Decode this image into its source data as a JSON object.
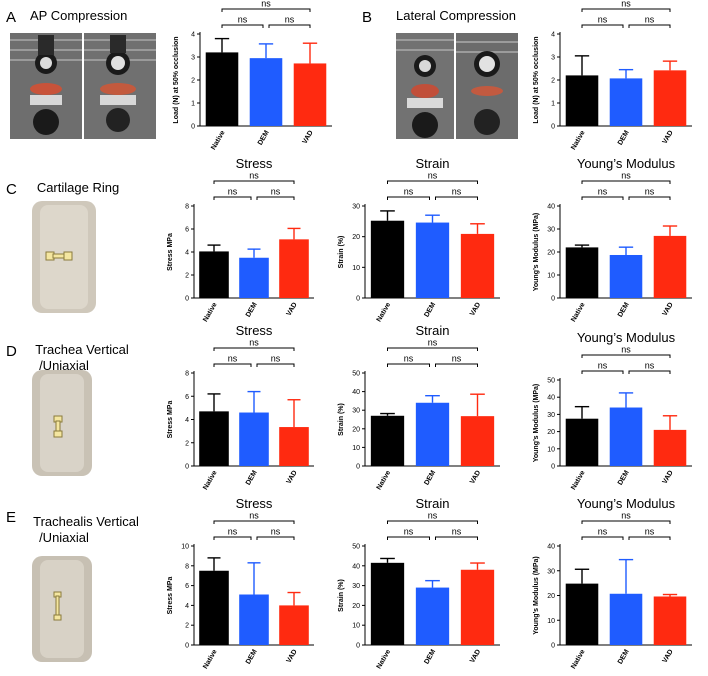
{
  "colors": {
    "Native": "#000000",
    "DEM": "#1f5cff",
    "VAD": "#ff2a10",
    "photo_bg": "#7b7b7b",
    "tissue": "#d9d2c6",
    "highlight": "#f2e7a0"
  },
  "panels": [
    {
      "letter": "A",
      "title": "AP Compression",
      "photo_icon": "compression-rig-photo"
    },
    {
      "letter": "B",
      "title": "Lateral Compression",
      "photo_icon": "compression-rig-photo"
    },
    {
      "letter": "C",
      "title_lines": [
        "Cartilage Ring"
      ],
      "photo_icon": "cartilage-ring-photo"
    },
    {
      "letter": "D",
      "title_lines": [
        "Trachea Vertical",
        "/Uniaxial"
      ],
      "photo_icon": "trachea-strip-photo"
    },
    {
      "letter": "E",
      "title_lines": [
        "Trachealis Vertical",
        "/Uniaxial"
      ],
      "photo_icon": "trachealis-strip-photo"
    }
  ],
  "chart_data": [
    {
      "id": "A",
      "type": "bar",
      "title": "",
      "ylabel": "Load (N) at 50% occlusion",
      "ylim": [
        0,
        4
      ],
      "yticks": [
        0,
        1,
        2,
        3,
        4
      ],
      "categories": [
        "Native",
        "DEM",
        "VAD"
      ],
      "values": [
        3.2,
        2.95,
        2.72
      ],
      "errors": [
        0.6,
        0.62,
        0.88
      ],
      "comparisons": [
        {
          "pair": [
            "Native",
            "DEM"
          ],
          "label": "ns"
        },
        {
          "pair": [
            "DEM",
            "VAD"
          ],
          "label": "ns"
        },
        {
          "pair": [
            "Native",
            "VAD"
          ],
          "label": "ns"
        }
      ]
    },
    {
      "id": "B",
      "type": "bar",
      "title": "",
      "ylabel": "Load (N) at 50% occlusion",
      "ylim": [
        0,
        4
      ],
      "yticks": [
        0,
        1,
        2,
        3,
        4
      ],
      "categories": [
        "Native",
        "DEM",
        "VAD"
      ],
      "values": [
        2.2,
        2.07,
        2.42
      ],
      "errors": [
        0.85,
        0.38,
        0.4
      ],
      "comparisons": [
        {
          "pair": [
            "Native",
            "DEM"
          ],
          "label": "ns"
        },
        {
          "pair": [
            "DEM",
            "VAD"
          ],
          "label": "ns"
        },
        {
          "pair": [
            "Native",
            "VAD"
          ],
          "label": "ns"
        }
      ]
    },
    {
      "id": "C1",
      "type": "bar",
      "title": "Stress",
      "ylabel": "Stress MPa",
      "ylim": [
        0,
        8
      ],
      "yticks": [
        0,
        2,
        4,
        6,
        8
      ],
      "categories": [
        "Native",
        "DEM",
        "VAD"
      ],
      "values": [
        4.05,
        3.5,
        5.1
      ],
      "errors": [
        0.55,
        0.75,
        0.95
      ],
      "comparisons": [
        {
          "pair": [
            "Native",
            "DEM"
          ],
          "label": "ns"
        },
        {
          "pair": [
            "DEM",
            "VAD"
          ],
          "label": "ns"
        },
        {
          "pair": [
            "Native",
            "VAD"
          ],
          "label": "ns"
        }
      ]
    },
    {
      "id": "C2",
      "type": "bar",
      "title": "Strain",
      "ylabel": "Strain (%)",
      "ylim": [
        0,
        30
      ],
      "yticks": [
        0,
        10,
        20,
        30
      ],
      "categories": [
        "Native",
        "DEM",
        "VAD"
      ],
      "values": [
        25.2,
        24.6,
        20.9
      ],
      "errors": [
        3.2,
        2.4,
        3.3
      ],
      "comparisons": [
        {
          "pair": [
            "Native",
            "DEM"
          ],
          "label": "ns"
        },
        {
          "pair": [
            "DEM",
            "VAD"
          ],
          "label": "ns"
        },
        {
          "pair": [
            "Native",
            "VAD"
          ],
          "label": "ns"
        }
      ]
    },
    {
      "id": "C3",
      "type": "bar",
      "title": "Young’s Modulus",
      "ylabel": "Young’s Modulus (MPa)",
      "ylim": [
        0,
        40
      ],
      "yticks": [
        0,
        10,
        20,
        30,
        40
      ],
      "categories": [
        "Native",
        "DEM",
        "VAD"
      ],
      "values": [
        22.0,
        18.7,
        27.0
      ],
      "errors": [
        1.0,
        3.4,
        4.3
      ],
      "comparisons": [
        {
          "pair": [
            "Native",
            "DEM"
          ],
          "label": "ns"
        },
        {
          "pair": [
            "DEM",
            "VAD"
          ],
          "label": "ns"
        },
        {
          "pair": [
            "Native",
            "VAD"
          ],
          "label": "ns"
        }
      ]
    },
    {
      "id": "D1",
      "type": "bar",
      "title": "Stress",
      "ylabel": "Stress MPa",
      "ylim": [
        0,
        8
      ],
      "yticks": [
        0,
        2,
        4,
        6,
        8
      ],
      "categories": [
        "Native",
        "DEM",
        "VAD"
      ],
      "values": [
        4.7,
        4.6,
        3.35
      ],
      "errors": [
        1.5,
        1.8,
        2.35
      ],
      "comparisons": [
        {
          "pair": [
            "Native",
            "DEM"
          ],
          "label": "ns"
        },
        {
          "pair": [
            "DEM",
            "VAD"
          ],
          "label": "ns"
        },
        {
          "pair": [
            "Native",
            "VAD"
          ],
          "label": "ns"
        }
      ]
    },
    {
      "id": "D2",
      "type": "bar",
      "title": "Strain",
      "ylabel": "Strain (%)",
      "ylim": [
        0,
        50
      ],
      "yticks": [
        0,
        10,
        20,
        30,
        40,
        50
      ],
      "categories": [
        "Native",
        "DEM",
        "VAD"
      ],
      "values": [
        27.0,
        34.0,
        26.8
      ],
      "errors": [
        1.2,
        3.8,
        11.8
      ],
      "comparisons": [
        {
          "pair": [
            "Native",
            "DEM"
          ],
          "label": "ns"
        },
        {
          "pair": [
            "DEM",
            "VAD"
          ],
          "label": "ns"
        },
        {
          "pair": [
            "Native",
            "VAD"
          ],
          "label": "ns"
        }
      ]
    },
    {
      "id": "D3",
      "type": "bar",
      "title": "Young’s Modulus",
      "ylabel": "Young’s Modulus (MPa)",
      "ylim": [
        0,
        50
      ],
      "yticks": [
        0,
        10,
        20,
        30,
        40,
        50
      ],
      "categories": [
        "Native",
        "DEM",
        "VAD"
      ],
      "values": [
        27.5,
        34.0,
        21.0
      ],
      "errors": [
        7.0,
        8.5,
        8.2
      ],
      "comparisons": [
        {
          "pair": [
            "Native",
            "DEM"
          ],
          "label": "ns"
        },
        {
          "pair": [
            "DEM",
            "VAD"
          ],
          "label": "ns"
        },
        {
          "pair": [
            "Native",
            "VAD"
          ],
          "label": "ns"
        }
      ]
    },
    {
      "id": "E1",
      "type": "bar",
      "title": "Stress",
      "ylabel": "Stress MPa",
      "ylim": [
        0,
        10
      ],
      "yticks": [
        0,
        2,
        4,
        6,
        8,
        10
      ],
      "categories": [
        "Native",
        "DEM",
        "VAD"
      ],
      "values": [
        7.5,
        5.1,
        4.0
      ],
      "errors": [
        1.3,
        3.2,
        1.3
      ],
      "comparisons": [
        {
          "pair": [
            "Native",
            "DEM"
          ],
          "label": "ns"
        },
        {
          "pair": [
            "DEM",
            "VAD"
          ],
          "label": "ns"
        },
        {
          "pair": [
            "Native",
            "VAD"
          ],
          "label": "ns"
        }
      ]
    },
    {
      "id": "E2",
      "type": "bar",
      "title": "Strain",
      "ylabel": "Strain (%)",
      "ylim": [
        0,
        50
      ],
      "yticks": [
        0,
        10,
        20,
        30,
        40,
        50
      ],
      "categories": [
        "Native",
        "DEM",
        "VAD"
      ],
      "values": [
        41.5,
        29.0,
        38.0
      ],
      "errors": [
        2.2,
        3.5,
        3.4
      ],
      "comparisons": [
        {
          "pair": [
            "Native",
            "DEM"
          ],
          "label": "ns"
        },
        {
          "pair": [
            "DEM",
            "VAD"
          ],
          "label": "ns"
        },
        {
          "pair": [
            "Native",
            "VAD"
          ],
          "label": "ns"
        }
      ]
    },
    {
      "id": "E3",
      "type": "bar",
      "title": "Young’s Modulus",
      "ylabel": "Young’s Modulus (MPa)",
      "ylim": [
        0,
        40
      ],
      "yticks": [
        0,
        10,
        20,
        30,
        40
      ],
      "categories": [
        "Native",
        "DEM",
        "VAD"
      ],
      "values": [
        24.8,
        20.7,
        19.6
      ],
      "errors": [
        5.8,
        13.8,
        0.8
      ],
      "comparisons": [
        {
          "pair": [
            "Native",
            "DEM"
          ],
          "label": "ns"
        },
        {
          "pair": [
            "DEM",
            "VAD"
          ],
          "label": "ns"
        },
        {
          "pair": [
            "Native",
            "VAD"
          ],
          "label": "ns"
        }
      ]
    }
  ]
}
